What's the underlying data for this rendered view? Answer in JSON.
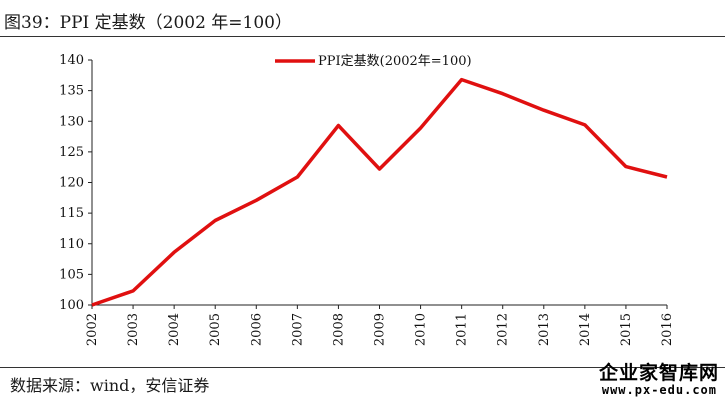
{
  "header": {
    "title": "图39：PPI 定基数（2002 年=100）"
  },
  "footer": {
    "source": "数据来源：wind，安信证券",
    "watermark_top": "企业家智库网",
    "watermark_bottom": "www.px-edu.com"
  },
  "chart_data": {
    "type": "line",
    "title": "",
    "xlabel": "",
    "ylabel": "",
    "categories": [
      "2002",
      "2003",
      "2004",
      "2005",
      "2006",
      "2007",
      "2008",
      "2009",
      "2010",
      "2011",
      "2012",
      "2013",
      "2014",
      "2015",
      "2016"
    ],
    "series": [
      {
        "name": "PPI定基数(2002年=100)",
        "color": "#e01010",
        "values": [
          100,
          102.3,
          108.6,
          113.8,
          117.1,
          120.9,
          129.3,
          122.2,
          128.9,
          136.8,
          134.5,
          131.8,
          129.4,
          122.6,
          120.9
        ]
      }
    ],
    "ylim": [
      100,
      140
    ],
    "yticks": [
      100,
      105,
      110,
      115,
      120,
      125,
      130,
      135,
      140
    ],
    "grid": false,
    "legend": "top-center"
  }
}
